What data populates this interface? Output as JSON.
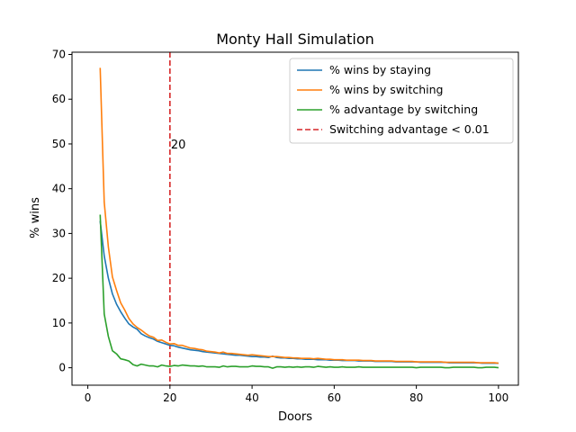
{
  "chart_data": {
    "type": "line",
    "title": "Monty Hall Simulation",
    "xlabel": "Doors",
    "ylabel": "% wins",
    "xlim": [
      -3.85,
      104.85
    ],
    "ylim": [
      -3.9,
      70.5
    ],
    "xticks": [
      0,
      20,
      40,
      60,
      80,
      100
    ],
    "yticks": [
      0,
      10,
      20,
      30,
      40,
      50,
      60,
      70
    ],
    "grid": false,
    "legend_position": "top-right",
    "x": [
      3,
      4,
      5,
      6,
      7,
      8,
      9,
      10,
      11,
      12,
      13,
      14,
      15,
      16,
      17,
      18,
      19,
      20,
      21,
      22,
      23,
      24,
      25,
      26,
      27,
      28,
      29,
      30,
      31,
      32,
      33,
      34,
      35,
      36,
      37,
      38,
      39,
      40,
      41,
      42,
      43,
      44,
      45,
      46,
      47,
      48,
      49,
      50,
      51,
      52,
      53,
      54,
      55,
      56,
      57,
      58,
      59,
      60,
      61,
      62,
      63,
      64,
      65,
      66,
      67,
      68,
      69,
      70,
      71,
      72,
      73,
      74,
      75,
      76,
      77,
      78,
      79,
      80,
      81,
      82,
      83,
      84,
      85,
      86,
      87,
      88,
      89,
      90,
      91,
      92,
      93,
      94,
      95,
      96,
      97,
      98,
      99,
      100
    ],
    "series": [
      {
        "name": "% wins by staying",
        "color": "#1f77b4",
        "values": [
          32.8,
          25.0,
          20.0,
          16.5,
          14.2,
          12.5,
          11.1,
          9.8,
          9.1,
          8.6,
          7.6,
          7.1,
          6.7,
          6.4,
          5.9,
          5.6,
          5.3,
          5.0,
          4.9,
          4.6,
          4.4,
          4.2,
          4.0,
          3.9,
          3.8,
          3.6,
          3.5,
          3.4,
          3.3,
          3.2,
          3.1,
          3.0,
          2.9,
          2.8,
          2.8,
          2.7,
          2.6,
          2.5,
          2.5,
          2.4,
          2.4,
          2.3,
          2.6,
          2.3,
          2.2,
          2.2,
          2.1,
          2.1,
          2.0,
          2.0,
          1.9,
          1.9,
          1.9,
          1.8,
          1.8,
          1.8,
          1.7,
          1.7,
          1.7,
          1.6,
          1.6,
          1.6,
          1.6,
          1.5,
          1.5,
          1.5,
          1.5,
          1.4,
          1.4,
          1.4,
          1.4,
          1.4,
          1.3,
          1.3,
          1.3,
          1.3,
          1.3,
          1.3,
          1.2,
          1.2,
          1.2,
          1.2,
          1.2,
          1.2,
          1.2,
          1.1,
          1.1,
          1.1,
          1.1,
          1.1,
          1.1,
          1.1,
          1.1,
          1.0,
          1.0,
          1.0,
          1.0,
          1.0
        ]
      },
      {
        "name": "% wins by switching",
        "color": "#ff7f0e",
        "values": [
          67.0,
          37.0,
          27.0,
          20.3,
          17.3,
          14.5,
          12.9,
          11.0,
          9.8,
          9.0,
          8.4,
          7.7,
          7.1,
          6.8,
          6.1,
          6.2,
          5.7,
          5.3,
          5.4,
          5.0,
          5.0,
          4.7,
          4.4,
          4.3,
          4.1,
          4.0,
          3.7,
          3.6,
          3.5,
          3.3,
          3.5,
          3.2,
          3.2,
          3.1,
          3.0,
          2.9,
          2.8,
          2.9,
          2.8,
          2.7,
          2.6,
          2.5,
          2.5,
          2.5,
          2.4,
          2.3,
          2.3,
          2.2,
          2.2,
          2.1,
          2.1,
          2.1,
          2.0,
          2.1,
          2.0,
          1.9,
          1.9,
          1.8,
          1.8,
          1.8,
          1.7,
          1.7,
          1.7,
          1.7,
          1.6,
          1.6,
          1.6,
          1.5,
          1.5,
          1.5,
          1.5,
          1.5,
          1.4,
          1.4,
          1.4,
          1.4,
          1.4,
          1.3,
          1.3,
          1.3,
          1.3,
          1.3,
          1.3,
          1.3,
          1.2,
          1.2,
          1.2,
          1.2,
          1.2,
          1.2,
          1.2,
          1.2,
          1.1,
          1.1,
          1.1,
          1.1,
          1.1,
          1.0
        ]
      },
      {
        "name": "% advantage by switching",
        "color": "#2ca02c",
        "values": [
          34.2,
          12.0,
          7.0,
          3.8,
          3.1,
          2.0,
          1.8,
          1.5,
          0.7,
          0.4,
          0.8,
          0.6,
          0.4,
          0.4,
          0.2,
          0.6,
          0.4,
          0.3,
          0.5,
          0.4,
          0.6,
          0.5,
          0.4,
          0.4,
          0.3,
          0.4,
          0.2,
          0.2,
          0.2,
          0.1,
          0.4,
          0.2,
          0.3,
          0.3,
          0.2,
          0.2,
          0.2,
          0.4,
          0.3,
          0.3,
          0.2,
          0.2,
          -0.1,
          0.2,
          0.2,
          0.1,
          0.2,
          0.1,
          0.2,
          0.1,
          0.2,
          0.2,
          0.1,
          0.3,
          0.2,
          0.1,
          0.2,
          0.1,
          0.1,
          0.2,
          0.1,
          0.1,
          0.1,
          0.2,
          0.1,
          0.1,
          0.1,
          0.1,
          0.1,
          0.1,
          0.1,
          0.1,
          0.1,
          0.1,
          0.1,
          0.1,
          0.1,
          0.0,
          0.1,
          0.1,
          0.1,
          0.1,
          0.1,
          0.1,
          0.0,
          0.0,
          0.1,
          0.1,
          0.1,
          0.1,
          0.1,
          0.1,
          0.0,
          0.0,
          0.1,
          0.1,
          0.1,
          0.0
        ]
      }
    ],
    "vline": {
      "x": 20,
      "name": "Switching advantage < 0.01",
      "color": "#d62728",
      "label": "20",
      "label_y": 50
    }
  }
}
